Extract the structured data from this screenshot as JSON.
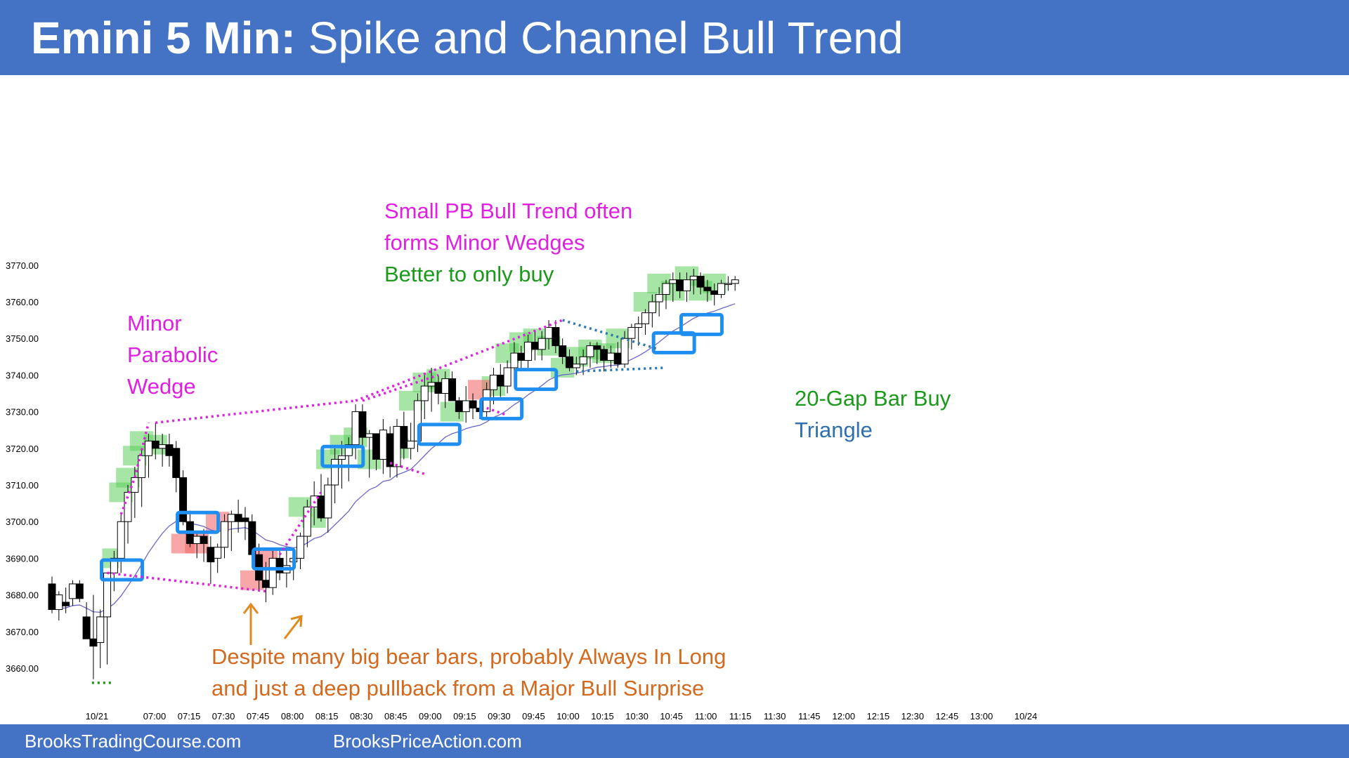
{
  "header": {
    "title_bold": "Emini 5 Min:",
    "title_rest": " Spike and Channel Bull Trend"
  },
  "footer": {
    "left": "BrooksTradingCourse.com",
    "right": "BrooksPriceAction.com"
  },
  "colors": {
    "header_bg": "#4472c4",
    "bull_highlight": "#5ccf5c",
    "bear_highlight": "#f26d6d",
    "signal_box": "#1f8ef1",
    "wedge_line": "#e020e0",
    "ema": "#6a67c8",
    "magenta_text": "#e020e0",
    "green_text": "#1a9a1a",
    "orange_text": "#d2691e",
    "blue_text": "#2f6fb0",
    "triangle_line": "#2a7ab0"
  },
  "annotations": {
    "minor_wedge": [
      "Minor",
      "Parabolic",
      "Wedge"
    ],
    "small_pb": [
      "Small PB Bull Trend often",
      "forms Minor Wedges"
    ],
    "better_buy": "Better to only buy",
    "gap_bar": "20-Gap Bar Buy",
    "triangle": "Triangle",
    "despite": [
      "Despite many big bear bars, probably Always In Long",
      "and just a deep pullback from a Major Bull Surprise"
    ]
  },
  "chart_data": {
    "type": "candlestick",
    "title": "Emini 5 Min: Spike and Channel Bull Trend",
    "ylim": [
      3650,
      3780
    ],
    "y_ticks": [
      "3660.00",
      "3670.00",
      "3680.00",
      "3690.00",
      "3700.00",
      "3710.00",
      "3720.00",
      "3730.00",
      "3740.00",
      "3750.00",
      "3760.00",
      "3770.00"
    ],
    "x_ticks": [
      "10/21",
      "07:00",
      "07:15",
      "07:30",
      "07:45",
      "08:00",
      "08:15",
      "08:30",
      "08:45",
      "09:00",
      "09:15",
      "09:30",
      "09:45",
      "10:00",
      "10:15",
      "10:30",
      "10:45",
      "11:00",
      "11:15",
      "11:30",
      "11:45",
      "12:00",
      "12:15",
      "12:30",
      "12:45",
      "13:00",
      "10/24"
    ],
    "bars": [
      [
        3683,
        3685,
        3675,
        3676
      ],
      [
        3676,
        3681,
        3673,
        3680
      ],
      [
        3678,
        3682,
        3675,
        3677
      ],
      [
        3679,
        3684,
        3677,
        3683
      ],
      [
        3683,
        3684,
        3678,
        3679
      ],
      [
        3674,
        3678,
        3670,
        3668
      ],
      [
        3668,
        3680,
        3657,
        3666
      ],
      [
        3667,
        3676,
        3660,
        3674
      ],
      [
        3674,
        3686,
        3661,
        3686
      ],
      [
        3686,
        3692,
        3681,
        3690
      ],
      [
        3690,
        3702,
        3686,
        3700
      ],
      [
        3700,
        3710,
        3694,
        3708
      ],
      [
        3708,
        3715,
        3701,
        3712
      ],
      [
        3712,
        3720,
        3704,
        3718
      ],
      [
        3718,
        3724,
        3712,
        3722
      ],
      [
        3722,
        3727,
        3717,
        3720
      ],
      [
        3720,
        3724,
        3715,
        3721
      ],
      [
        3721,
        3724,
        3715,
        3718
      ],
      [
        3720,
        3722,
        3708,
        3712
      ],
      [
        3712,
        3714,
        3699,
        3700
      ],
      [
        3700,
        3703,
        3693,
        3694
      ],
      [
        3694,
        3697,
        3690,
        3696
      ],
      [
        3696,
        3698,
        3689,
        3694
      ],
      [
        3693,
        3696,
        3683,
        3689
      ],
      [
        3690,
        3694,
        3686,
        3693
      ],
      [
        3693,
        3702,
        3690,
        3700
      ],
      [
        3700,
        3703,
        3692,
        3702
      ],
      [
        3702,
        3706,
        3697,
        3700
      ],
      [
        3701,
        3704,
        3695,
        3700
      ],
      [
        3700,
        3702,
        3690,
        3691
      ],
      [
        3691,
        3694,
        3681,
        3684
      ],
      [
        3684,
        3689,
        3678,
        3682
      ],
      [
        3682,
        3692,
        3680,
        3690
      ],
      [
        3690,
        3692,
        3684,
        3686
      ],
      [
        3686,
        3693,
        3682,
        3688
      ],
      [
        3689,
        3691,
        3684,
        3690
      ],
      [
        3690,
        3697,
        3687,
        3696
      ],
      [
        3696,
        3706,
        3693,
        3704
      ],
      [
        3704,
        3711,
        3699,
        3707
      ],
      [
        3707,
        3713,
        3700,
        3701
      ],
      [
        3701,
        3712,
        3697,
        3710
      ],
      [
        3710,
        3720,
        3705,
        3717
      ],
      [
        3717,
        3722,
        3709,
        3718
      ],
      [
        3718,
        3723,
        3711,
        3721
      ],
      [
        3721,
        3732,
        3717,
        3730
      ],
      [
        3730,
        3732,
        3720,
        3723
      ],
      [
        3723,
        3725,
        3712,
        3724
      ],
      [
        3724,
        3724,
        3714,
        3717
      ],
      [
        3717,
        3728,
        3713,
        3725
      ],
      [
        3724,
        3726,
        3712,
        3715
      ],
      [
        3715,
        3728,
        3712,
        3726
      ],
      [
        3726,
        3730,
        3717,
        3720
      ],
      [
        3720,
        3727,
        3717,
        3722
      ],
      [
        3722,
        3735,
        3719,
        3733
      ],
      [
        3733,
        3740,
        3728,
        3737
      ],
      [
        3737,
        3742,
        3730,
        3738
      ],
      [
        3738,
        3740,
        3732,
        3735
      ],
      [
        3735,
        3741,
        3731,
        3739
      ],
      [
        3739,
        3741,
        3733,
        3733
      ],
      [
        3733,
        3734,
        3728,
        3730
      ],
      [
        3730,
        3737,
        3727,
        3733
      ],
      [
        3733,
        3735,
        3728,
        3731
      ],
      [
        3731,
        3733,
        3728,
        3730
      ],
      [
        3730,
        3738,
        3728,
        3736
      ],
      [
        3736,
        3742,
        3732,
        3740
      ],
      [
        3740,
        3743,
        3734,
        3737
      ],
      [
        3737,
        3744,
        3735,
        3742
      ],
      [
        3742,
        3749,
        3738,
        3746
      ],
      [
        3746,
        3748,
        3741,
        3744
      ],
      [
        3744,
        3751,
        3742,
        3749
      ],
      [
        3749,
        3752,
        3744,
        3747
      ],
      [
        3747,
        3752,
        3744,
        3750
      ],
      [
        3750,
        3755,
        3747,
        3753
      ],
      [
        3753,
        3755,
        3746,
        3748
      ],
      [
        3748,
        3750,
        3743,
        3745
      ],
      [
        3745,
        3747,
        3741,
        3742
      ],
      [
        3742,
        3745,
        3740,
        3743
      ],
      [
        3743,
        3747,
        3740,
        3745
      ],
      [
        3745,
        3749,
        3742,
        3748
      ],
      [
        3748,
        3749,
        3743,
        3747
      ],
      [
        3747,
        3748,
        3741,
        3744
      ],
      [
        3744,
        3748,
        3742,
        3746
      ],
      [
        3746,
        3749,
        3742,
        3743
      ],
      [
        3743,
        3752,
        3742,
        3750
      ],
      [
        3750,
        3754,
        3747,
        3753
      ],
      [
        3753,
        3756,
        3748,
        3754
      ],
      [
        3754,
        3758,
        3751,
        3757
      ],
      [
        3757,
        3762,
        3753,
        3760
      ],
      [
        3760,
        3764,
        3756,
        3762
      ],
      [
        3762,
        3766,
        3758,
        3765
      ],
      [
        3765,
        3768,
        3760,
        3766
      ],
      [
        3766,
        3768,
        3761,
        3763
      ],
      [
        3763,
        3768,
        3760,
        3766
      ],
      [
        3766,
        3769,
        3762,
        3767
      ],
      [
        3767,
        3768,
        3762,
        3764
      ],
      [
        3764,
        3766,
        3760,
        3763
      ],
      [
        3763,
        3765,
        3759,
        3762
      ],
      [
        3762,
        3766,
        3761,
        3765
      ],
      [
        3765,
        3767,
        3763,
        3765
      ],
      [
        3765,
        3767,
        3763,
        3766
      ]
    ]
  }
}
